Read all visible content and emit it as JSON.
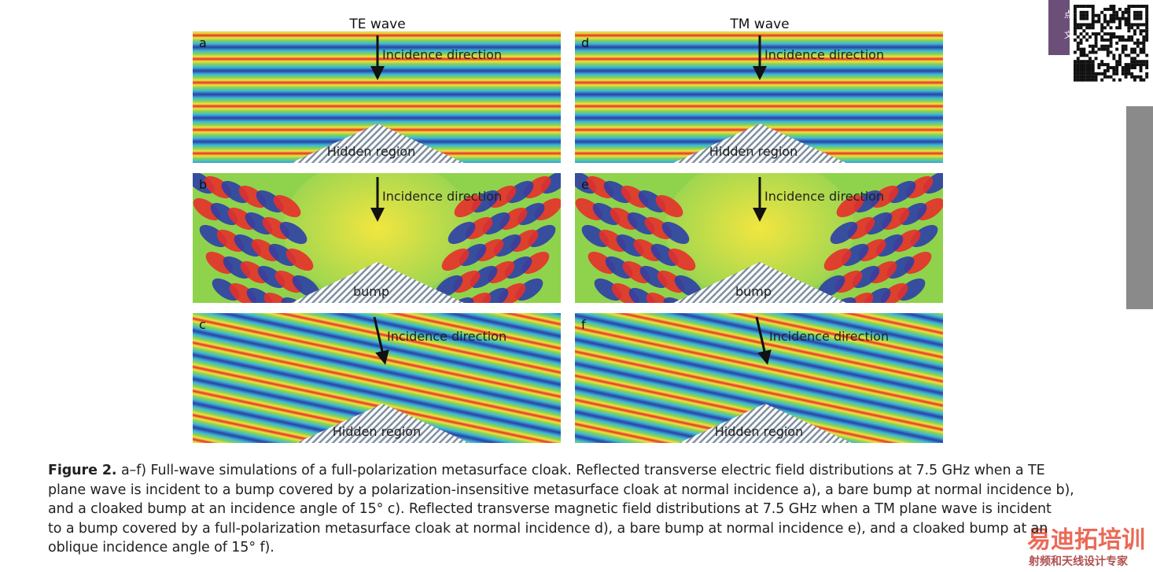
{
  "figure": {
    "columns": [
      {
        "title": "TE wave"
      },
      {
        "title": "TM wave"
      }
    ],
    "panels": [
      {
        "letter": "a",
        "direction": "Incidence direction",
        "region": "Hidden region"
      },
      {
        "letter": "b",
        "direction": "Incidence direction",
        "region": "bump"
      },
      {
        "letter": "c",
        "direction": "Incidence direction",
        "region": "Hidden region"
      },
      {
        "letter": "d",
        "direction": "Incidence direction",
        "region": "Hidden region"
      },
      {
        "letter": "e",
        "direction": "Incidence direction",
        "region": "bump"
      },
      {
        "letter": "f",
        "direction": "Incidence direction",
        "region": "Hidden region"
      }
    ]
  },
  "caption": {
    "label": "Figure 2.",
    "lines": [
      "a–f) Full-wave simulations of a full-polarization metasurface cloak. Reflected transverse electric field distributions at 7.5 GHz when a TE",
      "plane wave is incident to a bump covered by a polarization-insensitive metasurface cloak at normal incidence a), a bare bump at normal incidence b),",
      "and a cloaked bump at an incidence angle of 15° c). Reflected transverse magnetic field distributions at 7.5 GHz when a TM plane wave is incident",
      "to a bump covered by a full-polarization metasurface cloak at normal incidence d), a bare bump at normal incidence e), and a cloaked bump at an",
      "oblique incidence angle of 15° f)."
    ]
  },
  "side_tab": [
    "点",
    "文"
  ],
  "watermark": {
    "brand": "易迪拓培训",
    "slogan": "射频和天线设计专家"
  }
}
